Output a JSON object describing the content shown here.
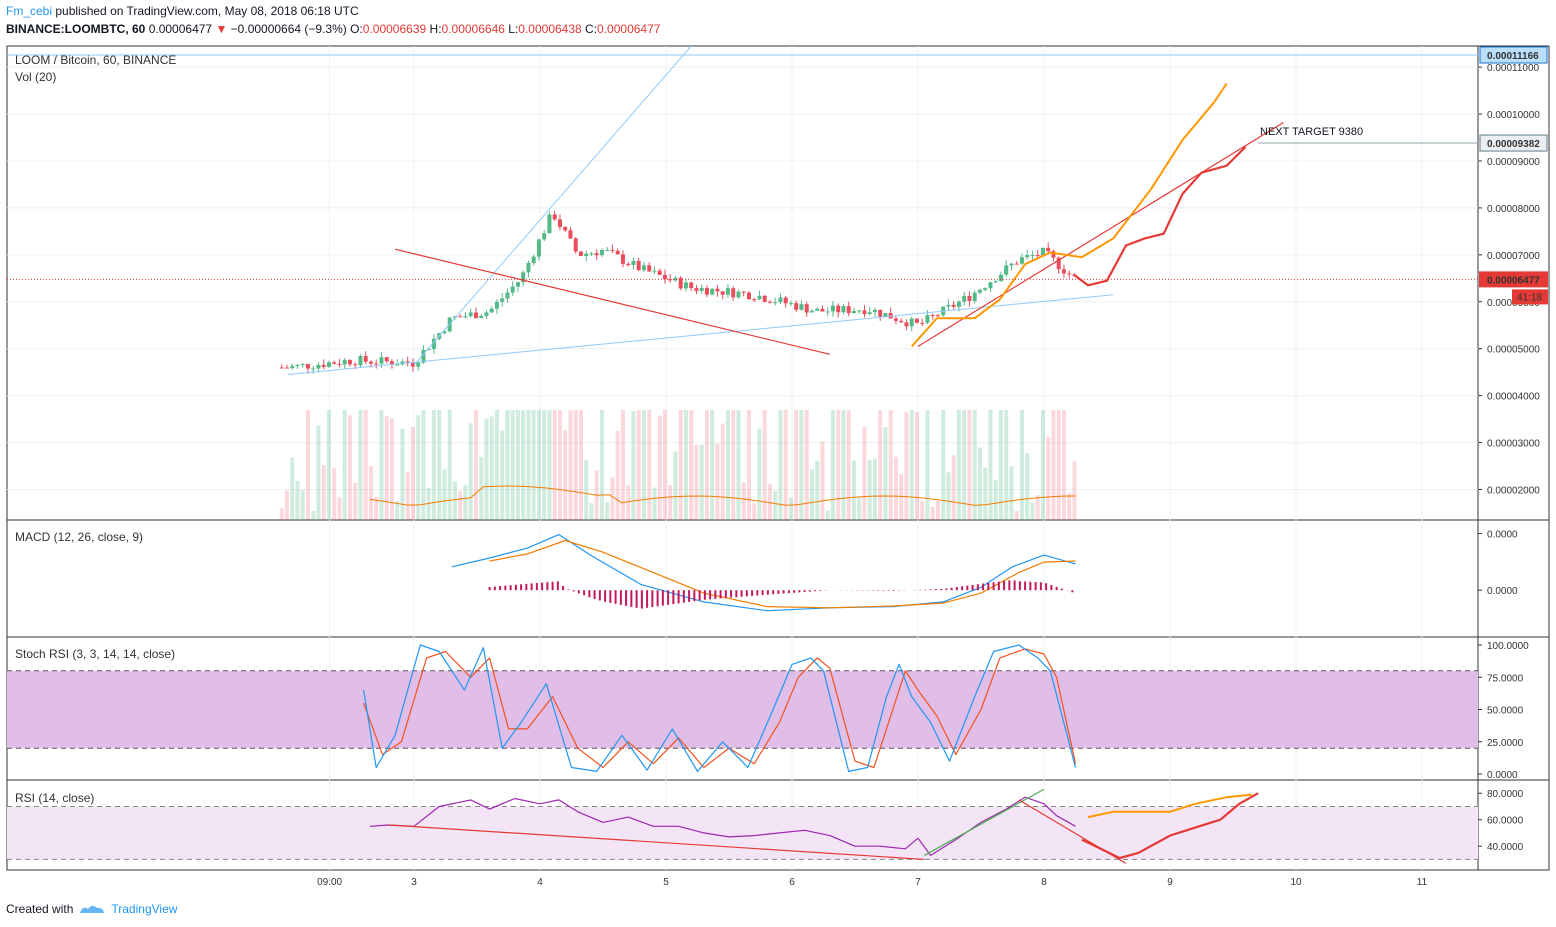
{
  "header": {
    "user": "Fm_cebi",
    "published": "published on TradingView.com, May 08, 2018 06:18 UTC",
    "symbol": "BINANCE:LOOMBTC, 60",
    "last": "0.00006477",
    "change_arrow": "▼",
    "change": "−0.00000664 (−9.3%)",
    "o_label": "O:",
    "o": "0.00006639",
    "h_label": "H:",
    "h": "0.00006646",
    "l_label": "L:",
    "l": "0.00006438",
    "c_label": "C:",
    "c": "0.00006477"
  },
  "panes": {
    "main_title": "LOOM / Bitcoin, 60, BINANCE",
    "vol_title": "Vol (20)",
    "macd_title": "MACD (12, 26, close, 9)",
    "stoch_title": "Stoch RSI (3, 3, 14, 14, close)",
    "rsi_title": "RSI (14, close)"
  },
  "annotations": {
    "target_text": "NEXT TARGET 9380",
    "target_price": "0.00009382",
    "top_price": "0.00011166",
    "last_price": "0.00006477",
    "countdown": "41:18"
  },
  "footer": {
    "created_with": "Created with",
    "brand": "TradingView"
  },
  "colors": {
    "up": "#53b987",
    "down": "#eb4d5c",
    "macd": "#2196f3",
    "signal": "#f57c00",
    "hist": "#c2185b",
    "stoch_k": "#2196f3",
    "stoch_d": "#f4511e",
    "rsi": "#9c27b0",
    "drawing_red": "#e53935",
    "drawing_orange": "#ff9800",
    "trend_blue": "#90caf9",
    "stoch_band": "#e1bee7",
    "rsi_band": "#f3e5f5"
  },
  "chart_data": [
    {
      "type": "candlestick",
      "title": "LOOM / Bitcoin, 60, BINANCE",
      "x_ticks": [
        "09:00",
        "3",
        "4",
        "5",
        "6",
        "7",
        "8",
        "9",
        "10",
        "11"
      ],
      "y_ticks": [
        "0.00011000",
        "0.00010000",
        "0.00009000",
        "0.00008000",
        "0.00007000",
        "0.00006000",
        "0.00005000",
        "0.00004000",
        "0.00003000",
        "0.00002000"
      ],
      "ylim": [
        1.35e-05,
        0.0001145
      ],
      "last": 6.477e-05,
      "ohlc_keypoints": [
        {
          "x": 2.0,
          "close": 4.6e-05
        },
        {
          "x": 2.5,
          "close": 4.75e-05
        },
        {
          "x": 3.0,
          "close": 4.7e-05
        },
        {
          "x": 3.3,
          "close": 5.65e-05
        },
        {
          "x": 3.6,
          "close": 5.8e-05
        },
        {
          "x": 3.85,
          "close": 6.5e-05
        },
        {
          "x": 4.1,
          "close": 7.9e-05
        },
        {
          "x": 4.3,
          "close": 7e-05
        },
        {
          "x": 4.5,
          "close": 7.1e-05
        },
        {
          "x": 4.8,
          "close": 6.7e-05
        },
        {
          "x": 5.2,
          "close": 6.3e-05
        },
        {
          "x": 5.7,
          "close": 6.15e-05
        },
        {
          "x": 6.2,
          "close": 5.8e-05
        },
        {
          "x": 6.6,
          "close": 5.85e-05
        },
        {
          "x": 7.0,
          "close": 5.5e-05
        },
        {
          "x": 7.4,
          "close": 6.1e-05
        },
        {
          "x": 7.8,
          "close": 6.9e-05
        },
        {
          "x": 8.0,
          "close": 7.05e-05
        },
        {
          "x": 8.25,
          "close": 6.477e-05
        }
      ],
      "volume": {
        "title": "Vol (20)"
      }
    },
    {
      "type": "line",
      "title": "MACD (12, 26, close, 9)",
      "y_ticks": [
        "0.0000",
        "0.0000"
      ],
      "series": [
        {
          "name": "MACD",
          "x": [
            3.3,
            3.6,
            3.9,
            4.15,
            4.4,
            4.8,
            5.3,
            5.8,
            6.3,
            6.8,
            7.2,
            7.5,
            7.75,
            8.0,
            8.25
          ],
          "values": [
            0.4,
            0.55,
            0.72,
            0.95,
            0.6,
            0.1,
            -0.2,
            -0.35,
            -0.3,
            -0.28,
            -0.2,
            0.05,
            0.4,
            0.6,
            0.45
          ]
        },
        {
          "name": "Signal",
          "x": [
            3.6,
            3.9,
            4.2,
            4.5,
            4.9,
            5.3,
            5.8,
            6.3,
            6.8,
            7.2,
            7.5,
            7.8,
            8.0,
            8.25
          ],
          "values": [
            0.5,
            0.62,
            0.85,
            0.65,
            0.3,
            -0.05,
            -0.28,
            -0.3,
            -0.27,
            -0.22,
            -0.05,
            0.3,
            0.48,
            0.5
          ]
        }
      ]
    },
    {
      "type": "line",
      "title": "Stoch RSI (3, 3, 14, 14, close)",
      "y_ticks": [
        "100.0000",
        "75.0000",
        "50.0000",
        "25.0000",
        "0.0000"
      ],
      "ylim": [
        0,
        100
      ],
      "bands": [
        20,
        80
      ],
      "series": [
        {
          "name": "K",
          "x": [
            2.6,
            2.7,
            2.85,
            3.05,
            3.2,
            3.4,
            3.55,
            3.7,
            3.85,
            4.05,
            4.25,
            4.45,
            4.65,
            4.85,
            5.05,
            5.25,
            5.45,
            5.65,
            5.85,
            6.0,
            6.15,
            6.25,
            6.45,
            6.6,
            6.75,
            6.85,
            6.95,
            7.1,
            7.25,
            7.45,
            7.6,
            7.8,
            7.95,
            8.05,
            8.25
          ],
          "values": [
            65,
            5,
            30,
            100,
            95,
            65,
            98,
            20,
            40,
            70,
            5,
            2,
            30,
            3,
            35,
            2,
            25,
            5,
            50,
            85,
            90,
            80,
            2,
            5,
            60,
            85,
            60,
            40,
            10,
            60,
            95,
            100,
            90,
            80,
            5
          ]
        },
        {
          "name": "D",
          "x": [
            2.6,
            2.75,
            2.9,
            3.1,
            3.25,
            3.45,
            3.6,
            3.75,
            3.9,
            4.1,
            4.3,
            4.5,
            4.7,
            4.9,
            5.1,
            5.3,
            5.5,
            5.7,
            5.9,
            6.05,
            6.2,
            6.3,
            6.5,
            6.65,
            6.8,
            6.9,
            7.0,
            7.15,
            7.3,
            7.5,
            7.65,
            7.85,
            8.0,
            8.1,
            8.25
          ],
          "values": [
            55,
            15,
            25,
            90,
            95,
            75,
            90,
            35,
            35,
            60,
            20,
            5,
            25,
            8,
            28,
            5,
            20,
            8,
            40,
            75,
            90,
            82,
            10,
            5,
            50,
            80,
            65,
            45,
            15,
            50,
            90,
            97,
            93,
            75,
            8
          ]
        }
      ]
    },
    {
      "type": "line",
      "title": "RSI (14, close)",
      "y_ticks": [
        "80.0000",
        "60.0000",
        "40.0000"
      ],
      "ylim": [
        22,
        90
      ],
      "bands": [
        30,
        70
      ],
      "series": [
        {
          "name": "RSI",
          "x": [
            2.65,
            2.8,
            3.0,
            3.2,
            3.45,
            3.6,
            3.8,
            4.0,
            4.15,
            4.3,
            4.5,
            4.7,
            4.9,
            5.1,
            5.3,
            5.5,
            5.7,
            5.9,
            6.1,
            6.3,
            6.5,
            6.7,
            6.9,
            7.0,
            7.1,
            7.3,
            7.5,
            7.7,
            7.85,
            8.0,
            8.1,
            8.25
          ],
          "values": [
            55,
            56,
            55,
            70,
            75,
            68,
            76,
            72,
            75,
            66,
            58,
            62,
            55,
            55,
            50,
            47,
            48,
            50,
            52,
            48,
            40,
            40,
            38,
            46,
            33,
            45,
            58,
            68,
            77,
            72,
            63,
            55
          ]
        }
      ]
    }
  ]
}
